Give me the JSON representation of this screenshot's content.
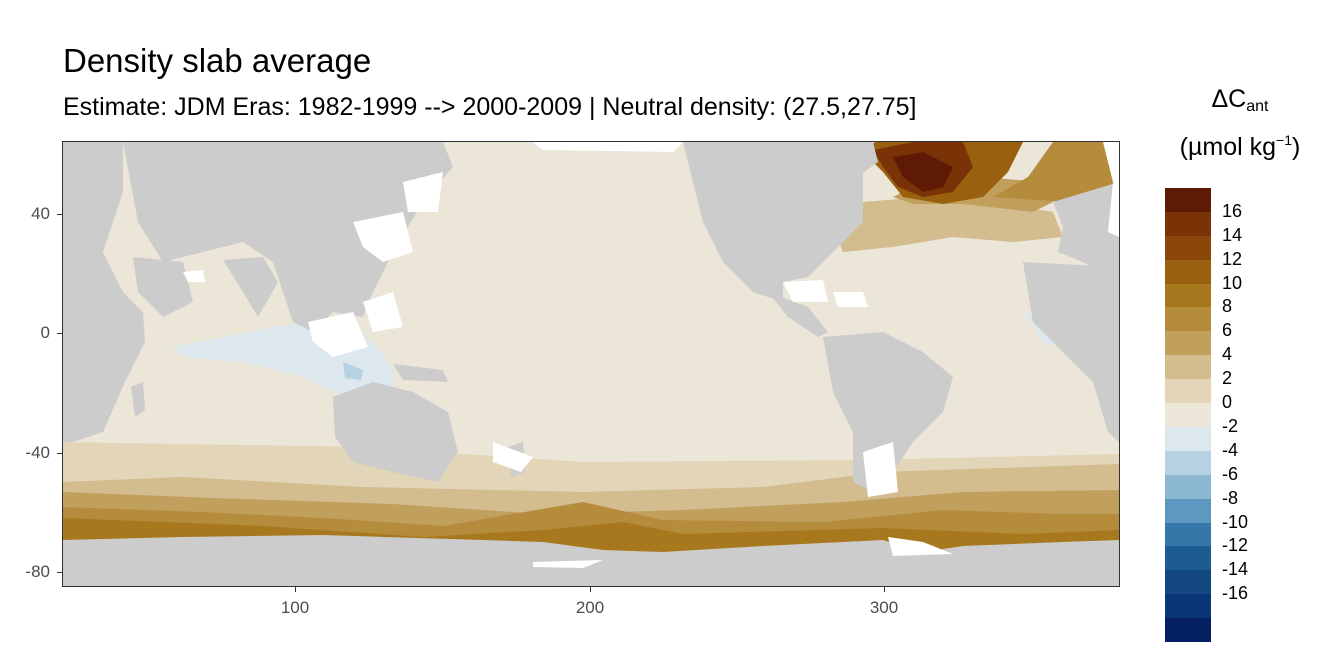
{
  "title": "Density slab average",
  "subtitle": "Estimate: JDM Eras: 1982-1999 --> 2000-2009 | Neutral density: (27.5,27.75]",
  "legend": {
    "title_main": "ΔC",
    "title_sub": "ant",
    "unit_prefix": "(µmol kg",
    "unit_sup": "−1",
    "unit_suffix": ")",
    "labels": [
      "16",
      "14",
      "12",
      "10",
      "8",
      "6",
      "4",
      "2",
      "0",
      "-2",
      "-4",
      "-6",
      "-8",
      "-10",
      "-12",
      "-14",
      "-16"
    ],
    "colors": [
      "#5e1a05",
      "#7a3306",
      "#8a4709",
      "#99600f",
      "#a8781f",
      "#b58c3c",
      "#c1a05e",
      "#d3bc8e",
      "#e2d5b8",
      "#ece6d9",
      "#dde8ee",
      "#b6d1e2",
      "#8db8d2",
      "#5d98c0",
      "#3577a8",
      "#1d5b93",
      "#124781",
      "#0a3577",
      "#051f63"
    ]
  },
  "axes": {
    "y_ticks": [
      "40",
      "0",
      "-40",
      "-80"
    ],
    "x_ticks": [
      "100",
      "200",
      "300"
    ]
  },
  "chart_data": {
    "type": "heatmap",
    "title": "Density slab average",
    "subtitle": "Estimate: JDM Eras: 1982-1999 --> 2000-2009 | Neutral density: (27.5,27.75]",
    "xlim": [
      20,
      380
    ],
    "ylim": [
      -85,
      65
    ],
    "x_ticks": [
      100,
      200,
      300
    ],
    "y_ticks": [
      40,
      0,
      -40,
      -80
    ],
    "colorbar": {
      "title": "ΔCant (µmol kg−1)",
      "breaks": [
        16,
        14,
        12,
        10,
        8,
        6,
        4,
        2,
        0,
        -2,
        -4,
        -6,
        -8,
        -10,
        -12,
        -14,
        -16
      ]
    },
    "land_color": "#cccccc",
    "nodata_color": "#ffffff"
  }
}
